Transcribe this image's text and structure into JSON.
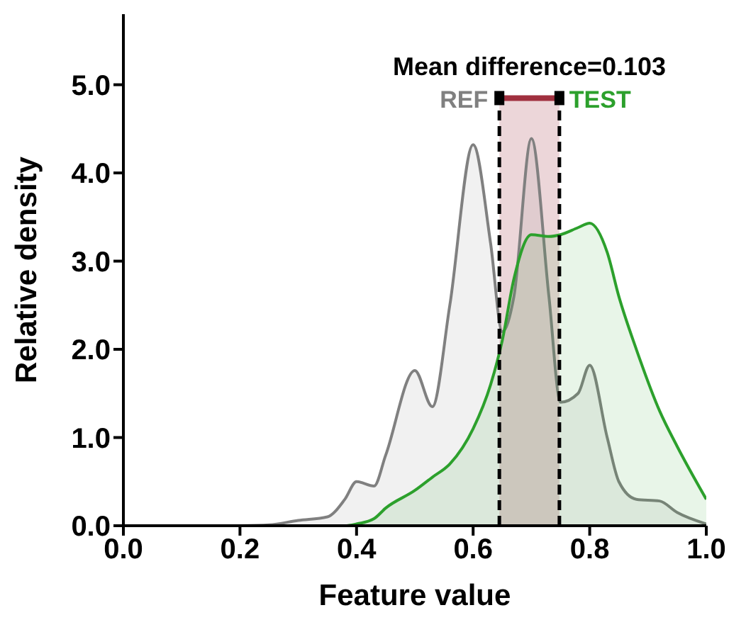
{
  "chart_data": {
    "type": "area",
    "xlabel": "Feature value",
    "ylabel": "Relative density",
    "annotations": [
      "Mean difference=0.103"
    ],
    "x": [
      0.2,
      0.25,
      0.3,
      0.35,
      0.38,
      0.4,
      0.43,
      0.45,
      0.5,
      0.53,
      0.56,
      0.6,
      0.63,
      0.65,
      0.67,
      0.7,
      0.73,
      0.75,
      0.78,
      0.8,
      0.83,
      0.85,
      0.88,
      0.92,
      0.95,
      1.0
    ],
    "series": [
      {
        "name": "REF",
        "color": "#808080",
        "values": [
          0,
          0.01,
          0.06,
          0.1,
          0.3,
          0.5,
          0.45,
          0.8,
          1.76,
          1.35,
          2.5,
          4.32,
          3.2,
          2.2,
          2.6,
          4.39,
          2.6,
          1.4,
          1.5,
          1.82,
          1.0,
          0.5,
          0.3,
          0.28,
          0.15,
          0.02
        ]
      },
      {
        "name": "TEST",
        "color": "#2ca02c",
        "values": [
          0,
          0,
          0,
          0,
          0,
          0.02,
          0.08,
          0.2,
          0.4,
          0.55,
          0.7,
          1.1,
          1.6,
          2.1,
          2.8,
          3.3,
          3.28,
          3.3,
          3.38,
          3.43,
          3.1,
          2.6,
          2.0,
          1.3,
          0.9,
          0.3
        ]
      }
    ],
    "bands": [
      {
        "axis": "x",
        "from": 0.645,
        "to": 0.748,
        "color": "#a0303f"
      }
    ],
    "ref_lines": [
      {
        "axis": "x",
        "value": 0.645,
        "line_style": "dashed",
        "color": "#000000"
      },
      {
        "axis": "x",
        "value": 0.748,
        "line_style": "dashed",
        "color": "#000000"
      }
    ],
    "xlim": [
      0,
      1
    ],
    "xticks": [
      {
        "value": 0,
        "label": "0.0"
      },
      {
        "value": 0.2,
        "label": "0.2"
      },
      {
        "value": 0.4,
        "label": "0.4"
      },
      {
        "value": 0.6,
        "label": "0.6"
      },
      {
        "value": 0.8,
        "label": "0.8"
      },
      {
        "value": 1,
        "label": "1.0"
      }
    ],
    "ylim": [
      0,
      5.8
    ],
    "yticks": [
      {
        "value": 0,
        "label": "0.0"
      },
      {
        "value": 1,
        "label": "1.0"
      },
      {
        "value": 2,
        "label": "2.0"
      },
      {
        "value": 3,
        "label": "3.0"
      },
      {
        "value": 4,
        "label": "4.0"
      },
      {
        "value": 5,
        "label": "5.0"
      }
    ],
    "grid": false,
    "legend": false
  }
}
